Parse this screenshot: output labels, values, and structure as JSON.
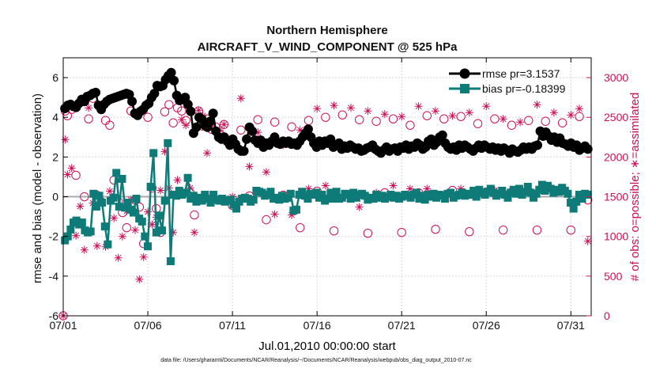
{
  "chart_data": {
    "type": "line",
    "title": "Northern Hemisphere",
    "subtitle": "AIRCRAFT_V_WIND_COMPONENT @ 525 hPa",
    "xlabel": "Jul.01,2010 00:00:00 start",
    "ylabel": "rmse and bias (model - observation)",
    "y2label": "# of obs: o=possible; ∗=assimilated",
    "footnote": "data file: /Users/gharamti/Documents/NCAR/Reanalysis/~/Documents/NCAR/Reanalysis/webpub/obs_diag_output_2010-07.nc",
    "xlim": [
      1,
      32.2
    ],
    "ylim": [
      -6,
      7
    ],
    "y2lim": [
      0,
      3250
    ],
    "xticks": [
      1,
      6,
      11,
      16,
      21,
      26,
      31
    ],
    "xtick_labels": [
      "07/01",
      "07/06",
      "07/11",
      "07/16",
      "07/21",
      "07/26",
      "07/31"
    ],
    "yticks": [
      -6,
      -4,
      -2,
      0,
      2,
      4,
      6
    ],
    "ytick_labels": [
      "-6",
      "-4",
      "-2",
      "0",
      "2",
      "4",
      "6"
    ],
    "y2ticks": [
      0,
      500,
      1000,
      1500,
      2000,
      2500,
      3000
    ],
    "y2tick_labels": [
      "0",
      "500",
      "1000",
      "1500",
      "2000",
      "2500",
      "3000"
    ],
    "grid": true,
    "legend_position": "top-right",
    "colors": {
      "rmse": "#000000",
      "bias": "#0f7b78",
      "obs": "#cc1058",
      "zero_line": "#aaaaaa"
    },
    "series": [
      {
        "name": "rmse pr=3.1537",
        "axis": "left",
        "marker": "circle",
        "values": [
          4.45,
          4.6,
          4.65,
          4.55,
          4.5,
          4.7,
          4.9,
          4.8,
          5.05,
          5.1,
          5.2,
          5.25,
          4.6,
          4.4,
          4.65,
          4.8,
          4.9,
          4.95,
          5.0,
          5.05,
          5.1,
          5.15,
          5.2,
          5.15,
          4.8,
          4.2,
          4.1,
          4.3,
          4.4,
          4.6,
          4.7,
          5.0,
          5.2,
          5.6,
          5.55,
          5.6,
          5.9,
          6.1,
          6.25,
          5.85,
          5.1,
          4.85,
          4.9,
          5.0,
          4.65,
          4.3,
          3.2,
          3.5,
          4.0,
          3.9,
          3.6,
          3.5,
          3.8,
          4.2,
          3.3,
          3.0,
          2.9,
          3.0,
          2.8,
          2.6,
          2.9,
          2.65,
          2.4,
          2.3,
          2.3,
          2.9,
          3.5,
          3.3,
          2.85,
          2.7,
          2.85,
          2.5,
          2.7,
          2.6,
          2.8,
          3.0,
          2.7,
          2.65,
          2.8,
          2.7,
          2.8,
          2.65,
          2.7,
          2.6,
          2.8,
          3.0,
          3.2,
          3.4,
          3.0,
          2.7,
          2.5,
          2.8,
          2.6,
          2.8,
          2.7,
          2.9,
          2.5,
          2.6,
          2.7,
          2.4,
          2.55,
          2.45,
          2.6,
          2.5,
          2.4,
          2.45,
          2.3,
          2.35,
          2.45,
          2.5,
          2.6,
          2.4,
          2.3,
          2.2,
          2.35,
          2.5,
          2.3,
          2.4,
          2.45,
          2.3,
          2.5,
          2.45,
          2.6,
          2.4,
          2.55,
          2.5,
          2.7,
          2.6,
          2.4,
          2.5,
          2.8,
          2.9,
          2.6,
          2.75,
          3.0,
          3.1,
          2.7,
          2.5,
          2.4,
          2.5,
          2.35,
          2.6,
          2.45,
          2.6,
          2.5,
          2.4,
          2.3,
          2.45,
          2.6,
          2.45,
          2.6,
          2.5,
          2.4,
          2.5,
          2.35,
          2.45,
          2.3,
          2.45,
          2.35,
          2.2,
          2.4,
          2.3,
          2.25,
          2.35,
          2.5,
          2.4,
          2.5,
          2.4,
          2.55,
          2.6,
          3.3,
          3.05,
          3.25,
          3.05,
          2.85,
          3.0,
          2.75,
          2.95,
          2.7,
          2.65,
          2.55,
          2.7,
          2.5,
          2.6,
          2.35,
          2.45,
          2.55,
          2.4
        ]
      },
      {
        "name": "bias pr=-0.18399",
        "axis": "left",
        "marker": "square",
        "values": [
          -2.2,
          -2.0,
          -1.65,
          -1.3,
          -1.2,
          -1.4,
          -1.3,
          -1.7,
          -1.8,
          -1.75,
          0.15,
          -0.5,
          0.05,
          -0.3,
          -1.5,
          -2.4,
          -0.2,
          -0.05,
          1.2,
          -0.5,
          0.9,
          -0.55,
          -0.3,
          -0.65,
          -0.8,
          -0.1,
          -1.1,
          -1.25,
          -2.0,
          -2.5,
          0.5,
          2.2,
          -1.8,
          -0.95,
          -1.7,
          -0.2,
          2.7,
          -3.25,
          0.1,
          0.05,
          0.3,
          0.1,
          0.2,
          0.95,
          -0.1,
          0.05,
          -0.25,
          -0.05,
          -0.2,
          0.1,
          -0.1,
          -0.3,
          0.1,
          -0.15,
          -0.2,
          -0.1,
          -0.25,
          -0.2,
          -0.15,
          -0.4,
          -0.6,
          -0.25,
          -0.1,
          -0.05,
          -0.1,
          -0.25,
          -0.15,
          0.3,
          0.25,
          0.2,
          0.05,
          0.1,
          0.25,
          -0.1,
          -0.05,
          -0.15,
          0.05,
          -0.1,
          -0.05,
          0.15,
          -0.7,
          -0.65,
          0.1,
          0.25,
          0.05,
          -0.1,
          0.15,
          0.1,
          0.2,
          -0.05,
          0.1,
          -0.2,
          -0.1,
          0.2,
          -0.1,
          0.25,
          -0.1,
          -0.05,
          0.15,
          0.1,
          -0.1,
          0.2,
          -0.05,
          0.1,
          0.15,
          0.05,
          -0.15,
          -0.05,
          -0.1,
          0.1,
          -0.05,
          0.05,
          -0.1,
          0.0,
          0.1,
          -0.05,
          0.05,
          -0.1,
          0.0,
          0.1,
          0.05,
          -0.05,
          0.1,
          0.2,
          -0.1,
          0.05,
          -0.15,
          0.1,
          0.0,
          0.15,
          -0.05,
          0.1,
          0.05,
          -0.1,
          0.15,
          0.2,
          -0.05,
          0.05,
          0.1,
          0.2,
          0.05,
          0.15,
          0.1,
          0.3,
          0.0,
          0.35,
          0.2,
          0.1,
          0.25,
          0.4,
          0.2,
          0.05,
          0.15,
          0.3,
          0.1,
          -0.05,
          0.2,
          0.35,
          0.15,
          0.4,
          0.1,
          0.25,
          0.5,
          0.2,
          -0.05,
          0.15,
          0.35,
          0.6,
          0.3,
          0.55,
          0.4,
          0.2,
          0.35,
          0.25,
          0.45,
          0.3,
          0.15,
          -0.3,
          -0.6,
          -0.25,
          0.1,
          -0.1,
          0.15,
          0.1
        ]
      },
      {
        "name": "obs possible",
        "axis": "right",
        "marker": "open-circle",
        "points": [
          [
            1.0,
            0
          ],
          [
            1.12,
            2580
          ],
          [
            1.25,
            2520
          ],
          [
            1.5,
            2600
          ],
          [
            1.75,
            1770
          ],
          [
            2.0,
            1170
          ],
          [
            2.25,
            1500
          ],
          [
            2.5,
            2480
          ],
          [
            2.75,
            2740
          ],
          [
            3.0,
            1520
          ],
          [
            3.25,
            2620
          ],
          [
            3.5,
            2460
          ],
          [
            3.75,
            2400
          ],
          [
            4.0,
            1710
          ],
          [
            4.25,
            1440
          ],
          [
            4.5,
            1300
          ],
          [
            4.75,
            1110
          ],
          [
            5.0,
            2580
          ],
          [
            5.25,
            1460
          ],
          [
            5.5,
            1370
          ],
          [
            5.75,
            910
          ],
          [
            6.0,
            2500
          ],
          [
            6.25,
            1610
          ],
          [
            6.5,
            1350
          ],
          [
            6.75,
            1050
          ],
          [
            7.0,
            2570
          ],
          [
            7.25,
            2660
          ],
          [
            7.5,
            2430
          ],
          [
            7.75,
            2620
          ],
          [
            8.0,
            2580
          ],
          [
            8.25,
            2460
          ],
          [
            8.5,
            1550
          ],
          [
            8.75,
            1270
          ],
          [
            9.0,
            2580
          ],
          [
            9.25,
            2390
          ],
          [
            9.5,
            2480
          ],
          [
            9.75,
            2350
          ],
          [
            10.0,
            2380
          ],
          [
            10.25,
            2290
          ],
          [
            10.5,
            2410
          ],
          [
            11.0,
            1390
          ],
          [
            11.5,
            2340
          ],
          [
            12.0,
            1510
          ],
          [
            12.5,
            2470
          ],
          [
            13.0,
            1210
          ],
          [
            13.5,
            2440
          ],
          [
            14.0,
            1520
          ],
          [
            14.5,
            2380
          ],
          [
            15.0,
            1110
          ],
          [
            15.5,
            2460
          ],
          [
            16.0,
            1570
          ],
          [
            16.5,
            2500
          ],
          [
            17.0,
            1070
          ],
          [
            17.5,
            2530
          ],
          [
            18.0,
            1530
          ],
          [
            18.5,
            2470
          ],
          [
            19.0,
            1040
          ],
          [
            19.5,
            2450
          ],
          [
            20.0,
            1550
          ],
          [
            20.5,
            2480
          ],
          [
            21.0,
            1050
          ],
          [
            21.5,
            2400
          ],
          [
            22.0,
            1550
          ],
          [
            22.5,
            2520
          ],
          [
            23.0,
            1090
          ],
          [
            23.5,
            2480
          ],
          [
            24.0,
            1580
          ],
          [
            24.5,
            2510
          ],
          [
            25.0,
            1060
          ],
          [
            25.5,
            2420
          ],
          [
            26.0,
            1560
          ],
          [
            26.5,
            2480
          ],
          [
            27.0,
            1080
          ],
          [
            27.5,
            2400
          ],
          [
            28.0,
            1540
          ],
          [
            28.5,
            2460
          ],
          [
            29.0,
            1080
          ],
          [
            29.5,
            2450
          ],
          [
            30.0,
            1580
          ],
          [
            30.5,
            2430
          ],
          [
            31.0,
            1080
          ],
          [
            31.5,
            2510
          ],
          [
            32.0,
            1460
          ]
        ]
      },
      {
        "name": "obs assimilated",
        "axis": "right",
        "marker": "asterisk",
        "points": [
          [
            1.0,
            0
          ],
          [
            1.12,
            2220
          ],
          [
            1.25,
            1780
          ],
          [
            1.5,
            1860
          ],
          [
            1.75,
            1010
          ],
          [
            2.0,
            1380
          ],
          [
            2.25,
            830
          ],
          [
            2.5,
            2620
          ],
          [
            2.75,
            1420
          ],
          [
            3.0,
            880
          ],
          [
            3.25,
            1450
          ],
          [
            3.5,
            870
          ],
          [
            3.75,
            1570
          ],
          [
            4.0,
            1230
          ],
          [
            4.25,
            730
          ],
          [
            4.5,
            1000
          ],
          [
            4.75,
            1320
          ],
          [
            5.0,
            1460
          ],
          [
            5.25,
            1080
          ],
          [
            5.5,
            460
          ],
          [
            5.75,
            740
          ],
          [
            6.0,
            1310
          ],
          [
            6.25,
            1150
          ],
          [
            6.5,
            1240
          ],
          [
            6.75,
            1580
          ],
          [
            7.0,
            2070
          ],
          [
            7.25,
            1610
          ],
          [
            7.5,
            1050
          ],
          [
            7.75,
            1710
          ],
          [
            8.0,
            2470
          ],
          [
            8.25,
            2400
          ],
          [
            8.5,
            1610
          ],
          [
            8.75,
            1050
          ],
          [
            9.0,
            2590
          ],
          [
            9.25,
            2520
          ],
          [
            9.5,
            2050
          ],
          [
            9.75,
            2390
          ],
          [
            10.0,
            1470
          ],
          [
            10.25,
            2340
          ],
          [
            10.5,
            2410
          ],
          [
            11.0,
            1500
          ],
          [
            11.5,
            2740
          ],
          [
            12.0,
            1880
          ],
          [
            12.5,
            2310
          ],
          [
            13.0,
            1810
          ],
          [
            13.5,
            1280
          ],
          [
            14.0,
            2150
          ],
          [
            14.5,
            1270
          ],
          [
            15.0,
            2340
          ],
          [
            15.5,
            1600
          ],
          [
            16.0,
            2610
          ],
          [
            16.5,
            1640
          ],
          [
            17.0,
            2650
          ],
          [
            17.5,
            1480
          ],
          [
            18.0,
            2620
          ],
          [
            18.5,
            1370
          ],
          [
            19.0,
            2580
          ],
          [
            19.5,
            1550
          ],
          [
            20.0,
            2540
          ],
          [
            20.5,
            1640
          ],
          [
            21.0,
            2510
          ],
          [
            21.5,
            1600
          ],
          [
            22.0,
            2640
          ],
          [
            22.5,
            1600
          ],
          [
            23.0,
            2580
          ],
          [
            23.5,
            1530
          ],
          [
            24.0,
            2520
          ],
          [
            24.5,
            1600
          ],
          [
            25.0,
            2560
          ],
          [
            25.5,
            2110
          ],
          [
            26.0,
            2640
          ],
          [
            26.5,
            1580
          ],
          [
            27.0,
            2480
          ],
          [
            27.5,
            1570
          ],
          [
            28.0,
            2440
          ],
          [
            28.5,
            1600
          ],
          [
            29.0,
            2660
          ],
          [
            29.5,
            1640
          ],
          [
            30.0,
            2560
          ],
          [
            30.5,
            1610
          ],
          [
            31.0,
            2530
          ],
          [
            31.5,
            2610
          ],
          [
            32.0,
            940
          ]
        ]
      }
    ]
  }
}
